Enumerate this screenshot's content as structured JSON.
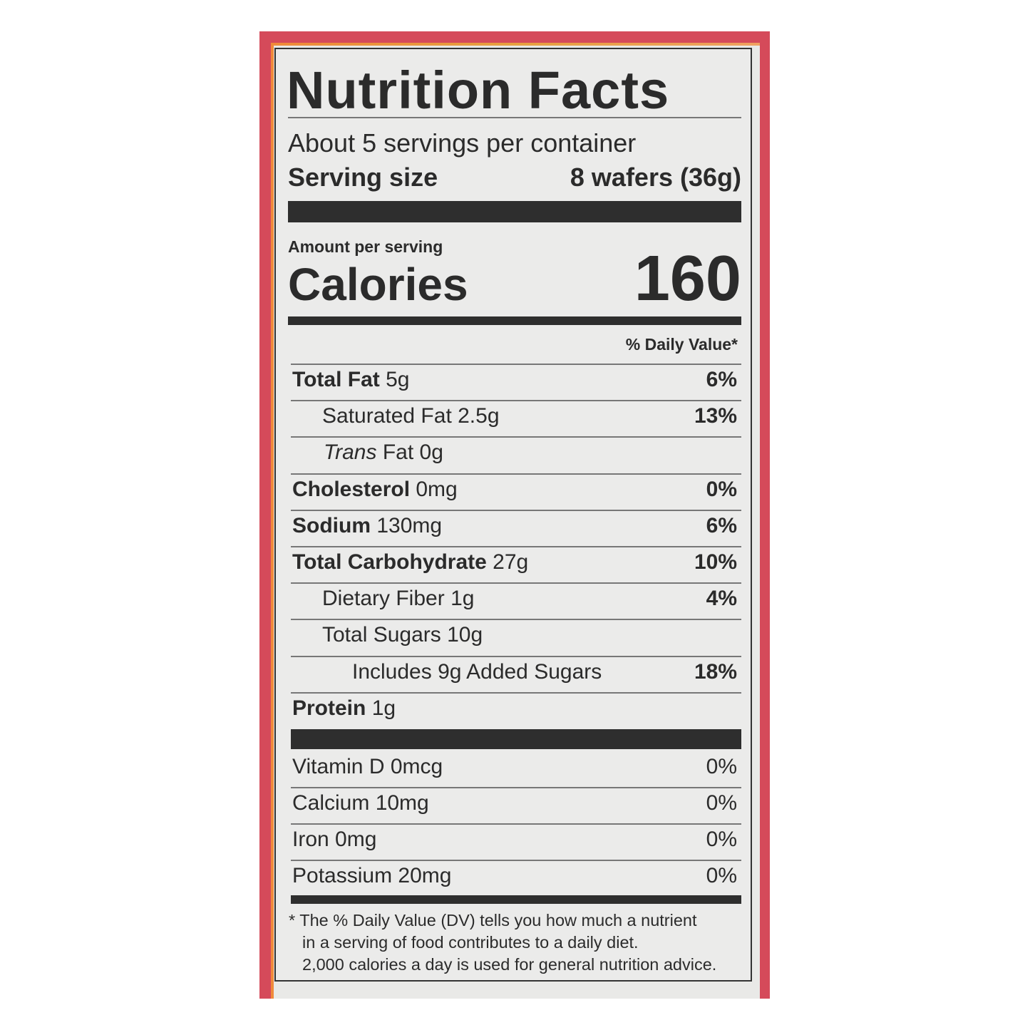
{
  "title": "Nutrition Facts",
  "servings_per_container": "About 5 servings per container",
  "serving_size_label": "Serving size",
  "serving_size_value": "8 wafers (36g)",
  "amount_per_serving": "Amount per serving",
  "calories_label": "Calories",
  "calories_value": "160",
  "dv_header": "% Daily Value*",
  "nutrients": [
    {
      "name": "Total Fat",
      "amount": "5g",
      "dv": "6%"
    },
    {
      "name": "Saturated Fat",
      "amount": "2.5g",
      "dv": "13%"
    },
    {
      "name": "Trans",
      "name2": "Fat",
      "amount": "0g",
      "dv": ""
    },
    {
      "name": "Cholesterol",
      "amount": "0mg",
      "dv": "0%"
    },
    {
      "name": "Sodium",
      "amount": "130mg",
      "dv": "6%"
    },
    {
      "name": "Total Carbohydrate",
      "amount": "27g",
      "dv": "10%"
    },
    {
      "name": "Dietary Fiber",
      "amount": "1g",
      "dv": "4%"
    },
    {
      "name": "Total Sugars",
      "amount": "10g",
      "dv": ""
    },
    {
      "name": "Includes 9g Added Sugars",
      "amount": "",
      "dv": "18%"
    },
    {
      "name": "Protein",
      "amount": "1g",
      "dv": ""
    }
  ],
  "vitamins": [
    {
      "name": "Vitamin D 0mcg",
      "dv": "0%"
    },
    {
      "name": "Calcium 10mg",
      "dv": "0%"
    },
    {
      "name": "Iron 0mg",
      "dv": "0%"
    },
    {
      "name": "Potassium 20mg",
      "dv": "0%"
    }
  ],
  "footnote": [
    "* The % Daily Value (DV) tells you how much a nutrient",
    "in a serving of food contributes to a daily diet.",
    "2,000 calories a day is used for general nutrition advice."
  ],
  "colors": {
    "package_red": "#d54a5a",
    "border_orange": "#e8a040",
    "label_bg": "#ebebea",
    "ink": "#2b2b2b"
  }
}
